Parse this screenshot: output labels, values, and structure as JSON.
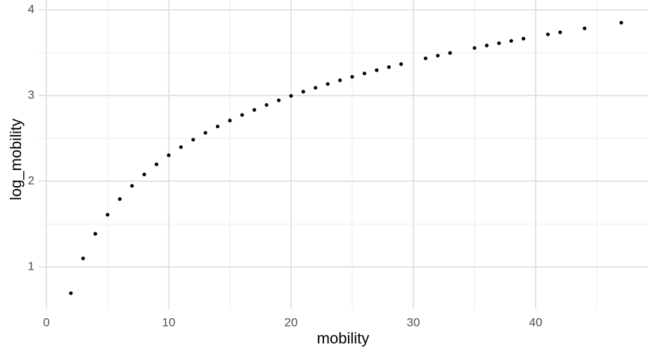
{
  "chart_data": {
    "type": "scatter",
    "x_label": "mobility",
    "y_label": "log_mobility",
    "x": [
      2,
      3,
      4,
      5,
      6,
      7,
      8,
      9,
      10,
      11,
      12,
      13,
      14,
      15,
      16,
      17,
      18,
      19,
      20,
      21,
      22,
      23,
      24,
      25,
      26,
      27,
      28,
      29,
      31,
      32,
      33,
      35,
      36,
      37,
      38,
      39,
      41,
      42,
      44,
      47
    ],
    "series": [
      {
        "color": "#000000",
        "values": [
          0.693,
          1.099,
          1.386,
          1.609,
          1.792,
          1.946,
          2.079,
          2.197,
          2.303,
          2.398,
          2.485,
          2.565,
          2.639,
          2.708,
          2.773,
          2.833,
          2.89,
          2.944,
          2.996,
          3.045,
          3.091,
          3.135,
          3.178,
          3.219,
          3.258,
          3.296,
          3.332,
          3.367,
          3.434,
          3.466,
          3.497,
          3.555,
          3.584,
          3.611,
          3.638,
          3.664,
          3.714,
          3.738,
          3.784,
          3.85
        ]
      }
    ],
    "xlim": [
      -0.632,
      49.195
    ],
    "ylim": [
      0.508,
      4.115
    ],
    "xticks": [
      0,
      10,
      20,
      30,
      40
    ],
    "yticks": [
      1,
      2,
      3,
      4
    ],
    "x_minor_grid": [
      5,
      15,
      25,
      35,
      45
    ],
    "y_minor_grid": [
      1.5,
      2.5,
      3.5
    ],
    "grid": true
  }
}
